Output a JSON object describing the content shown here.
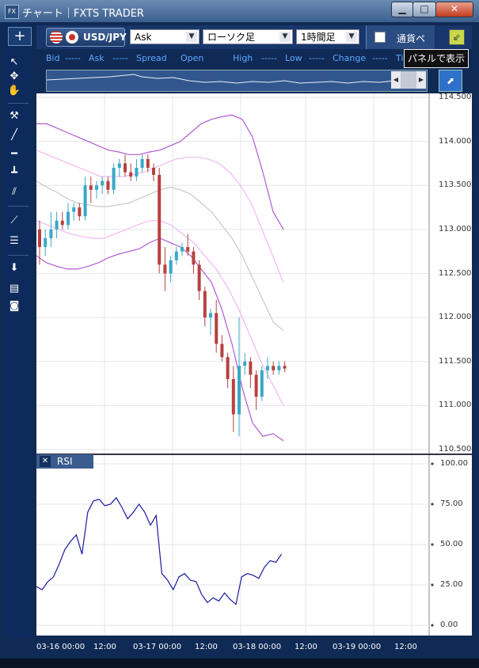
{
  "window": {
    "title": "チャート｜FXTS TRADER",
    "app_icon": "FX",
    "min_label": "▁",
    "max_label": "□",
    "close_label": "✕"
  },
  "left_toolbar": {
    "add_label": "+",
    "tools": [
      "cursor-arrow-icon",
      "crosshair-icon",
      "hand-pan-icon",
      "hammer-icon",
      "trendline-icon",
      "horizontal-line-icon",
      "vertical-line-icon",
      "parallel-channel-icon",
      "fan-icon",
      "fibonacci-icon",
      "download-icon",
      "list-icon",
      "camera-icon"
    ]
  },
  "toolbar": {
    "pair": "USD/JPY",
    "price_type": "Ask",
    "chart_style": "ローソク足",
    "timeframe": "1時間足",
    "currency_button": "通貨ペ"
  },
  "tooltip": {
    "text": "パネルで表示"
  },
  "info_row": {
    "bid_label": "Bid",
    "bid_value": "-----",
    "ask_label": "Ask",
    "ask_value": "-----",
    "spread_label": "Spread",
    "open_label": "Open",
    "high_label": "High",
    "high_value": "-----",
    "low_label": "Low",
    "low_value": "-----",
    "change_label": "Change",
    "change_value": "-----",
    "ti_label": "Ti"
  },
  "chart_data": [
    {
      "type": "candlestick",
      "ylim": [
        110.5,
        114.5
      ],
      "yticks": [
        "114.500",
        "114.000",
        "113.500",
        "113.000",
        "112.500",
        "112.000",
        "111.500",
        "111.000",
        "110.500"
      ],
      "candles": [
        [
          113.0,
          113.1,
          112.6,
          112.8
        ],
        [
          112.8,
          113.0,
          112.7,
          112.9
        ],
        [
          112.9,
          113.2,
          112.8,
          113.0
        ],
        [
          113.0,
          113.2,
          112.9,
          113.1
        ],
        [
          113.1,
          113.2,
          113.0,
          113.05
        ],
        [
          113.05,
          113.3,
          113.0,
          113.2
        ],
        [
          113.2,
          113.3,
          113.1,
          113.25
        ],
        [
          113.25,
          113.3,
          113.1,
          113.15
        ],
        [
          113.15,
          113.6,
          113.1,
          113.5
        ],
        [
          113.5,
          113.6,
          113.3,
          113.45
        ],
        [
          113.45,
          113.55,
          113.35,
          113.5
        ],
        [
          113.5,
          113.6,
          113.4,
          113.55
        ],
        [
          113.55,
          113.6,
          113.4,
          113.45
        ],
        [
          113.45,
          113.75,
          113.4,
          113.7
        ],
        [
          113.7,
          113.8,
          113.6,
          113.75
        ],
        [
          113.75,
          113.85,
          113.6,
          113.65
        ],
        [
          113.65,
          113.75,
          113.55,
          113.6
        ],
        [
          113.6,
          113.8,
          113.55,
          113.7
        ],
        [
          113.7,
          113.85,
          113.65,
          113.8
        ],
        [
          113.8,
          113.85,
          113.65,
          113.7
        ],
        [
          113.7,
          113.75,
          113.55,
          113.62
        ],
        [
          113.62,
          113.7,
          112.5,
          112.6
        ],
        [
          112.6,
          112.8,
          112.3,
          112.5
        ],
        [
          112.5,
          112.7,
          112.4,
          112.65
        ],
        [
          112.65,
          112.8,
          112.6,
          112.75
        ],
        [
          112.75,
          112.85,
          112.7,
          112.8
        ],
        [
          112.8,
          112.95,
          112.7,
          112.75
        ],
        [
          112.75,
          112.8,
          112.5,
          112.6
        ],
        [
          112.6,
          112.65,
          112.2,
          112.3
        ],
        [
          112.3,
          112.35,
          111.9,
          112.0
        ],
        [
          112.0,
          112.1,
          111.8,
          112.05
        ],
        [
          112.05,
          112.2,
          111.6,
          111.7
        ],
        [
          111.7,
          111.8,
          111.5,
          111.55
        ],
        [
          111.55,
          111.6,
          111.2,
          111.3
        ],
        [
          111.3,
          111.45,
          110.7,
          110.9
        ],
        [
          110.9,
          112.0,
          110.65,
          111.45
        ],
        [
          111.45,
          111.6,
          111.35,
          111.5
        ],
        [
          111.5,
          111.55,
          111.2,
          111.35
        ],
        [
          111.35,
          111.4,
          110.95,
          111.1
        ],
        [
          111.1,
          111.45,
          111.05,
          111.4
        ],
        [
          111.4,
          111.55,
          111.3,
          111.45
        ],
        [
          111.45,
          111.5,
          111.35,
          111.4
        ],
        [
          111.4,
          111.5,
          111.35,
          111.45
        ],
        [
          111.45,
          111.5,
          111.38,
          111.42
        ]
      ],
      "bb_upper_outer": [
        114.2,
        114.2,
        114.15,
        114.1,
        114.05,
        114.0,
        113.95,
        113.9,
        113.88,
        113.85,
        113.85,
        113.88,
        113.9,
        113.95,
        114.0,
        114.1,
        114.2,
        114.25,
        114.28,
        114.3,
        114.25,
        114.05,
        113.65,
        113.2,
        113.0
      ],
      "bb_upper_inner": [
        113.9,
        113.85,
        113.8,
        113.75,
        113.7,
        113.65,
        113.6,
        113.6,
        113.6,
        113.62,
        113.65,
        113.7,
        113.75,
        113.8,
        113.82,
        113.82,
        113.8,
        113.75,
        113.65,
        113.5,
        113.3,
        113.0,
        112.7,
        112.4
      ],
      "bb_mid": [
        113.55,
        113.48,
        113.42,
        113.35,
        113.3,
        113.28,
        113.26,
        113.26,
        113.28,
        113.3,
        113.35,
        113.4,
        113.45,
        113.48,
        113.45,
        113.4,
        113.3,
        113.2,
        113.05,
        112.9,
        112.7,
        112.45,
        112.2,
        111.95,
        111.85
      ],
      "bb_lower_inner": [
        113.1,
        113.05,
        113.0,
        112.95,
        112.92,
        112.9,
        112.9,
        112.95,
        113.0,
        113.05,
        113.1,
        113.1,
        113.05,
        112.95,
        112.85,
        112.7,
        112.55,
        112.35,
        112.1,
        111.8,
        111.5,
        111.25,
        111.0
      ],
      "bb_lower_outer": [
        112.7,
        112.62,
        112.58,
        112.55,
        112.55,
        112.58,
        112.62,
        112.68,
        112.72,
        112.75,
        112.78,
        112.85,
        112.9,
        112.85,
        112.8,
        112.7,
        112.55,
        112.4,
        112.1,
        111.7,
        111.2,
        110.8,
        110.65,
        110.68,
        110.6
      ]
    },
    {
      "type": "line",
      "ylim": [
        0,
        100
      ],
      "yticks": [
        "100.00",
        "75.00",
        "50.00",
        "25.00",
        "0.00"
      ],
      "values": [
        24,
        22,
        27,
        30,
        38,
        47,
        52,
        56,
        44,
        70,
        77,
        78,
        74,
        75,
        79,
        73,
        66,
        70,
        75,
        70,
        62,
        68,
        32,
        28,
        22,
        30,
        32,
        28,
        27,
        19,
        14,
        17,
        15,
        20,
        16,
        13,
        30,
        32,
        31,
        29,
        36,
        40,
        39,
        44
      ]
    }
  ],
  "rsi_panel": {
    "label": "RSI",
    "close_label": "✕"
  },
  "x_axis": [
    "03-16 00:00",
    "12:00",
    "03-17 00:00",
    "12:00",
    "03-18 00:00",
    "12:00",
    "03-19 00:00",
    "12:00"
  ]
}
